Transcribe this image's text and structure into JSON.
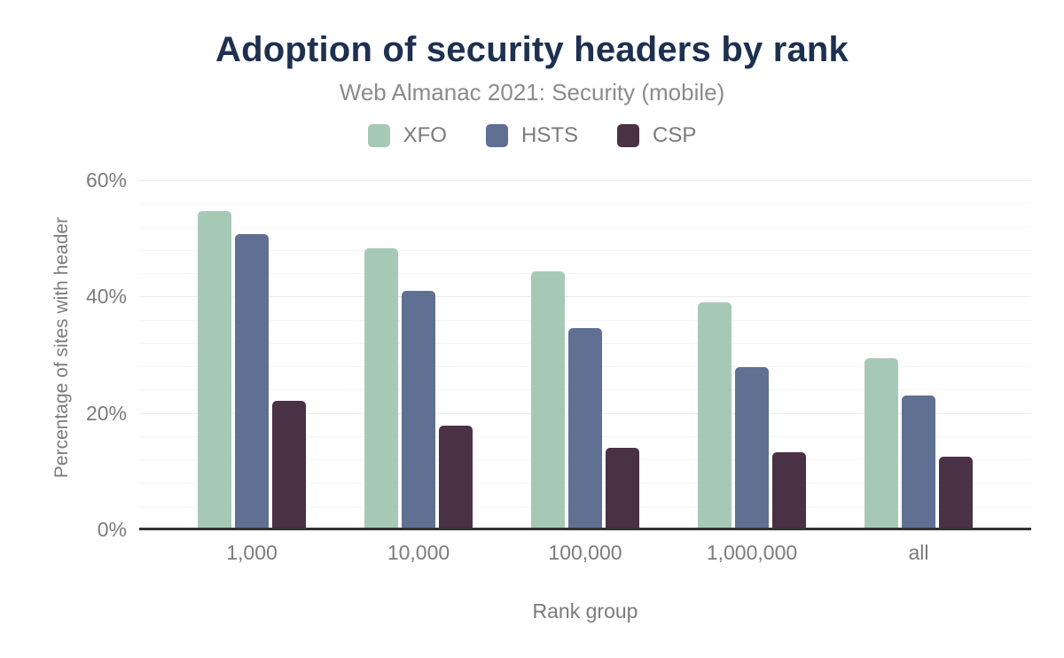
{
  "chart_data": {
    "type": "bar",
    "title": "Adoption of security headers by rank",
    "subtitle": "Web Almanac 2021: Security (mobile)",
    "categories": [
      "1,000",
      "10,000",
      "100,000",
      "1,000,000",
      "all"
    ],
    "series": [
      {
        "name": "XFO",
        "color": "#a6c9b6",
        "values": [
          54.5,
          48.1,
          44.2,
          38.8,
          29.2
        ]
      },
      {
        "name": "HSTS",
        "color": "#5f7092",
        "values": [
          50.6,
          40.8,
          34.4,
          27.7,
          22.8
        ]
      },
      {
        "name": "CSP",
        "color": "#4a3146",
        "values": [
          21.9,
          17.7,
          13.9,
          13.1,
          12.3
        ]
      }
    ],
    "xlabel": "Rank group",
    "ylabel": "Percentage of sites with header",
    "ylim": [
      0,
      60
    ],
    "yticks": [
      0,
      20,
      40,
      60
    ],
    "ytick_suffix": "%",
    "minor_gridline_step": 4,
    "grid": true,
    "legend_position": "top"
  },
  "colors": {
    "title": "#1d3050",
    "subtitle": "#8b8b8b",
    "axis_text": "#7b7b7b",
    "axis_line": "#333333",
    "gridline_major": "#ececec",
    "gridline_minor": "#f5f5f5",
    "background": "#ffffff"
  }
}
